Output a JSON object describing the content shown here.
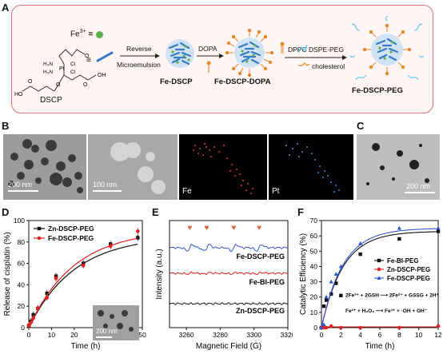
{
  "panels": {
    "a": "A",
    "b": "B",
    "c": "C",
    "d": "D",
    "e": "E",
    "f": "F"
  },
  "schematic": {
    "fe_label": "Fe",
    "fe_sup": "3+",
    "equiv": "≡",
    "reverse_label": "Reverse",
    "microemulsion_label": "Microemulsion",
    "dopa_label": "DOPA",
    "dppc_label": "DPPC",
    "dspe_label": "DSPE-PEG",
    "cholesterol_label": "cholesterol",
    "dscp_name": "DSCP",
    "fe_dscp": "Fe-DSCP",
    "fe_dscp_dopa": "Fe-DSCP-DOPA",
    "fe_dscp_peg": "Fe-DSCP-PEG",
    "chem": {
      "ho": "HO",
      "oh": "OH",
      "o1": "O",
      "o2": "O",
      "o3": "O",
      "o4": "O",
      "h3n": "H₃N",
      "h3n2": "H₃N",
      "cl1": "Cl",
      "cl2": "Cl",
      "pt": "Pt"
    }
  },
  "microscopy": {
    "b1_scale": "200 nm",
    "b2_scale": "100 nm",
    "map_fe": "Fe",
    "map_pt": "Pt",
    "c_scale": "200 nm",
    "d_inset_scale": "200 nm"
  },
  "colors": {
    "fe": "#e0302a",
    "pt": "#2a8fe0",
    "zn": "#111111",
    "bi": "#e02020",
    "fedscp": "#3355cc",
    "accent": "#d9736e"
  },
  "chart_data": [
    {
      "type": "line",
      "xlabel": "Time (h)",
      "ylabel": "Release of cisplatin (%)",
      "xlim": [
        0,
        50
      ],
      "ylim": [
        0,
        100
      ],
      "xticks": [
        "0",
        "10",
        "20",
        "30",
        "40",
        "50"
      ],
      "yticks": [
        "0",
        "20",
        "40",
        "60",
        "80",
        "100"
      ],
      "legend_position": "top-left",
      "series": [
        {
          "name": "Zn-DSCP-PEG",
          "marker": "square",
          "color": "#111111",
          "x": [
            0,
            1,
            2,
            4,
            8,
            12,
            24,
            36,
            48
          ],
          "y": [
            2,
            6,
            12,
            18,
            32,
            48,
            60,
            78,
            84
          ]
        },
        {
          "name": "Fe-DSCP-PEG",
          "marker": "circle",
          "color": "#e02020",
          "x": [
            0,
            1,
            2,
            4,
            8,
            12,
            24,
            36,
            48
          ],
          "y": [
            2,
            5,
            9,
            18,
            28,
            46,
            58,
            76,
            90
          ]
        }
      ]
    },
    {
      "type": "line",
      "xlabel": "Magnetic Field (G)",
      "ylabel": "Intensity (a.u.)",
      "xlim": [
        3250,
        3320
      ],
      "xticks": [
        "3260",
        "3280",
        "3300",
        "3320"
      ],
      "grid": false,
      "series": [
        {
          "name": "Fe-DSCP-PEG",
          "color": "#3355cc"
        },
        {
          "name": "Fe-BI-PEG",
          "color": "#e02020"
        },
        {
          "name": "Zn-DSCP-PEG",
          "color": "#111111"
        }
      ],
      "annotation": "♥"
    },
    {
      "type": "scatter",
      "xlabel": "Time (h)",
      "ylabel": "Catalytic Efficiency (%)",
      "xlim": [
        0,
        12
      ],
      "ylim": [
        0,
        70
      ],
      "xticks": [
        "0",
        "2",
        "4",
        "6",
        "8",
        "10",
        "12"
      ],
      "yticks": [
        "0",
        "10",
        "20",
        "30",
        "40",
        "50",
        "60",
        "70"
      ],
      "legend_position": "right",
      "series": [
        {
          "name": "Fe-BI-PEG",
          "marker": "square",
          "color": "#111111",
          "x": [
            0,
            0.25,
            0.5,
            1,
            1.5,
            2,
            4,
            8,
            12
          ],
          "y": [
            0,
            14,
            18,
            22,
            29,
            21,
            48,
            58,
            63
          ]
        },
        {
          "name": "Zn-DSCP-PEG",
          "marker": "circle",
          "color": "#e02020",
          "x": [
            0,
            0.25,
            0.5,
            1,
            2,
            4,
            8,
            12
          ],
          "y": [
            0,
            0,
            0,
            1,
            0,
            0,
            0,
            1
          ]
        },
        {
          "name": "Fe-DSCP-PEG",
          "marker": "triangle",
          "color": "#3355cc",
          "x": [
            0,
            0.25,
            0.5,
            1,
            1.5,
            2,
            4,
            8,
            12
          ],
          "y": [
            0,
            2,
            20,
            30,
            35,
            40,
            55,
            65,
            65
          ]
        }
      ],
      "equation1": "2Fe³⁺ + 2GSH ⟶ 2Fe²⁺ + GSSG + 2H⁺",
      "equation2": "Fe²⁺ + H₂O₂ ⟶ Fe³⁺ + ·OH + OH⁻"
    }
  ]
}
